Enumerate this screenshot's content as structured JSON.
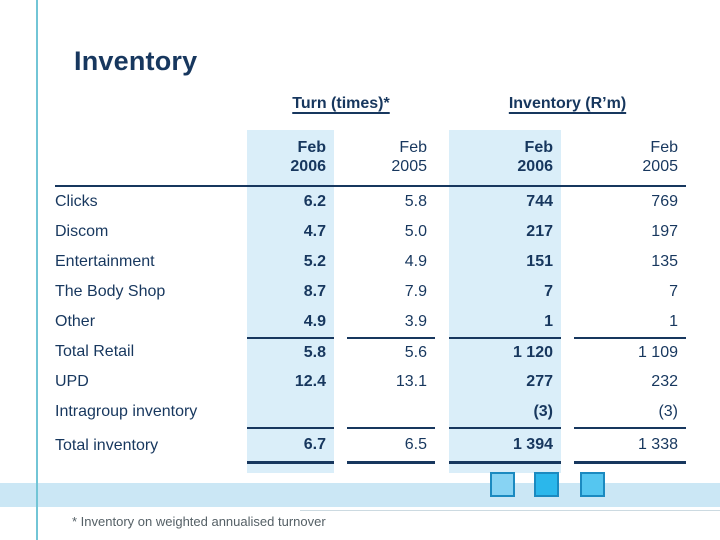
{
  "slide": {
    "title": "Inventory",
    "footnote": "* Inventory on weighted annualised turnover"
  },
  "table": {
    "groups": [
      {
        "label": "Turn (times)*"
      },
      {
        "label": "Inventory (R’m)"
      }
    ],
    "columns": [
      {
        "label": "Feb",
        "year": "2006",
        "highlight": true
      },
      {
        "label": "Feb",
        "year": "2005",
        "highlight": false
      },
      {
        "label": "Feb",
        "year": "2006",
        "highlight": true
      },
      {
        "label": "Feb",
        "year": "2005",
        "highlight": false
      }
    ],
    "rows": [
      {
        "label": "Clicks",
        "values": [
          "6.2",
          "5.8",
          "744",
          "769"
        ],
        "section": "body"
      },
      {
        "label": "Discom",
        "values": [
          "4.7",
          "5.0",
          "217",
          "197"
        ],
        "section": "body"
      },
      {
        "label": "Entertainment",
        "values": [
          "5.2",
          "4.9",
          "151",
          "135"
        ],
        "section": "body"
      },
      {
        "label": "The Body Shop",
        "values": [
          "8.7",
          "7.9",
          "7",
          "7"
        ],
        "section": "body"
      },
      {
        "label": "Other",
        "values": [
          "4.9",
          "3.9",
          "1",
          "1"
        ],
        "section": "body"
      },
      {
        "label": "Total Retail",
        "values": [
          "5.8",
          "5.6",
          "1 120",
          "1 109"
        ],
        "section": "subtotal"
      },
      {
        "label": "UPD",
        "values": [
          "12.4",
          "13.1",
          "277",
          "232"
        ],
        "section": "body"
      },
      {
        "label": "Intragroup inventory",
        "values": [
          "",
          "",
          "(3)",
          "(3)"
        ],
        "section": "body"
      },
      {
        "label": "Total inventory",
        "values": [
          "6.7",
          "6.5",
          "1 394",
          "1 338"
        ],
        "section": "total"
      }
    ]
  },
  "decorations": {
    "squares": [
      "#87D3F3",
      "#2BB7EB",
      "#55C6F0"
    ]
  },
  "colors": {
    "text_navy": "#17375E",
    "highlight_blue": "#DAEEF9",
    "band_blue": "#CBE7F5",
    "accent_line": "#72C5D6",
    "square_border": "#1B8AC0",
    "footnote_gray": "#556066",
    "divider_gray": "#CCDAE1"
  }
}
